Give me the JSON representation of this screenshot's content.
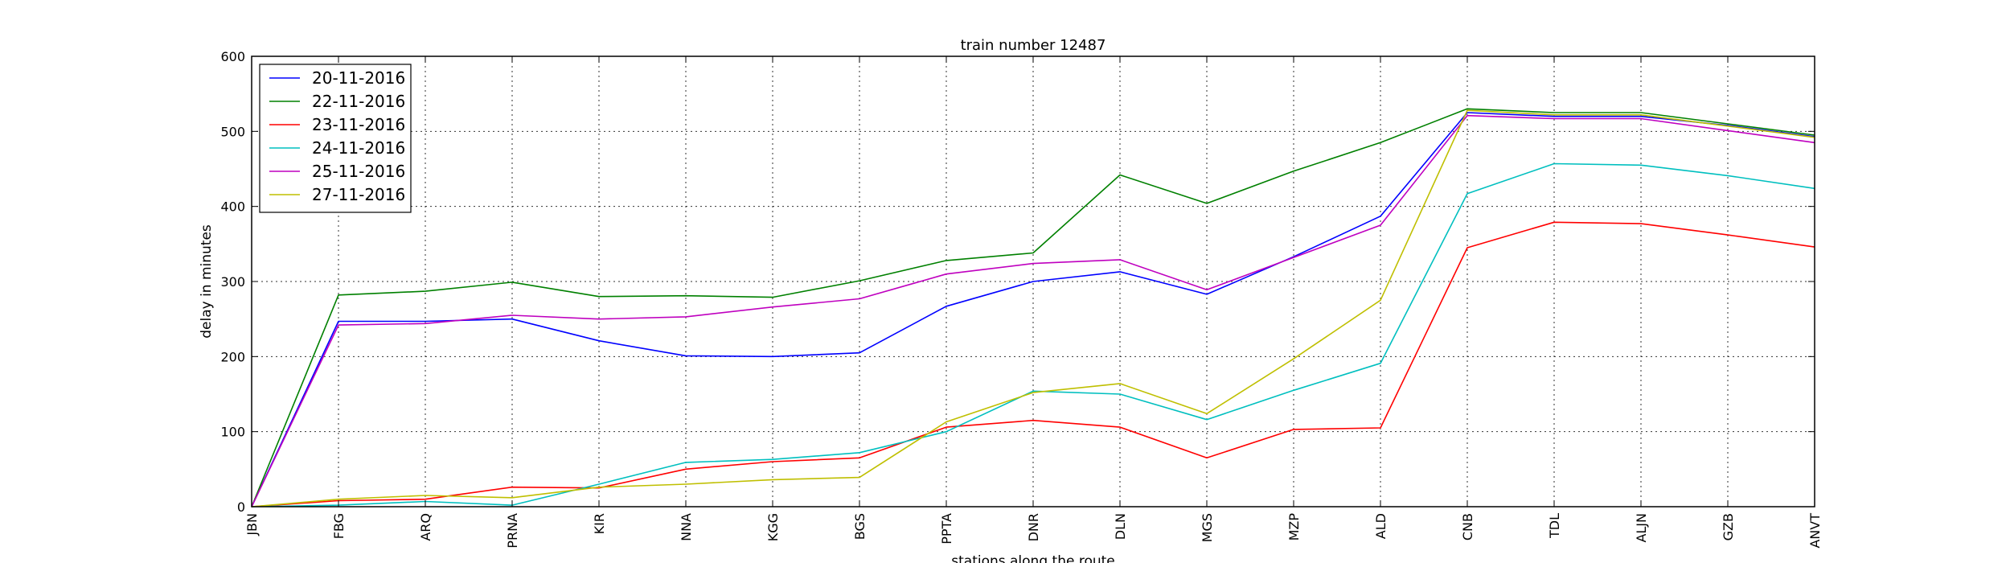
{
  "chart_data": {
    "type": "line",
    "title": "train number 12487",
    "xlabel": "stations along the route",
    "ylabel": "delay in minutes",
    "ylim": [
      0,
      600
    ],
    "yticks": [
      0,
      100,
      200,
      300,
      400,
      500,
      600
    ],
    "grid": true,
    "legend_position": "top-left",
    "categories": [
      "JBN",
      "FBG",
      "ARQ",
      "PRNA",
      "KIR",
      "NNA",
      "KGG",
      "BGS",
      "PPTA",
      "DNR",
      "DLN",
      "MGS",
      "MZP",
      "ALD",
      "CNB",
      "TDL",
      "ALJN",
      "GZB",
      "ANVT"
    ],
    "series": [
      {
        "name": "20-11-2016",
        "color": "#0000ff",
        "values": [
          0,
          247,
          247,
          250,
          221,
          201,
          200,
          205,
          267,
          300,
          313,
          283,
          333,
          387,
          525,
          520,
          520,
          508,
          493
        ]
      },
      {
        "name": "22-11-2016",
        "color": "#008000",
        "values": [
          0,
          282,
          287,
          299,
          280,
          281,
          279,
          301,
          328,
          338,
          442,
          404,
          447,
          485,
          530,
          525,
          525,
          510,
          495
        ]
      },
      {
        "name": "23-11-2016",
        "color": "#ff0000",
        "values": [
          0,
          8,
          10,
          26,
          25,
          50,
          60,
          65,
          106,
          115,
          106,
          65,
          103,
          105,
          345,
          379,
          377,
          362,
          346
        ]
      },
      {
        "name": "24-11-2016",
        "color": "#00bfbf",
        "values": [
          0,
          2,
          7,
          2,
          30,
          59,
          63,
          72,
          100,
          154,
          150,
          116,
          155,
          191,
          417,
          457,
          455,
          441,
          424
        ]
      },
      {
        "name": "25-11-2016",
        "color": "#bf00bf",
        "values": [
          0,
          242,
          244,
          255,
          250,
          253,
          266,
          277,
          310,
          324,
          329,
          289,
          332,
          375,
          521,
          517,
          517,
          501,
          485
        ]
      },
      {
        "name": "27-11-2016",
        "color": "#bfbf00",
        "values": [
          0,
          10,
          15,
          12,
          26,
          30,
          36,
          39,
          113,
          152,
          164,
          124,
          197,
          275,
          528,
          522,
          522,
          507,
          492
        ]
      }
    ]
  }
}
